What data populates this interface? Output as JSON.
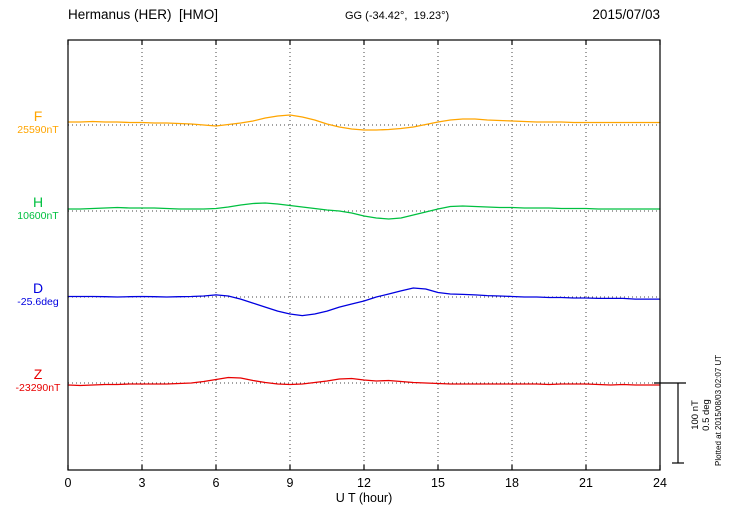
{
  "header": {
    "station": "Hermanus (HER)  [HMO]",
    "coords": "GG (-34.42°,  19.23°)",
    "date": "2015/07/03"
  },
  "axes": {
    "x_label": "U T (hour)",
    "x_ticks": [
      0,
      3,
      6,
      9,
      12,
      15,
      18,
      21,
      24
    ]
  },
  "scale_bar": {
    "nt": "100 nT",
    "deg": "0.5 deg"
  },
  "footer": {
    "plotted_at": "Plotted at 2015/08/03 02:07 UT"
  },
  "colors": {
    "axis": "#000000",
    "grid": "#444444"
  },
  "chart_data": {
    "type": "line",
    "title": "Hermanus (HER) [HMO] magnetogram — 2015/07/03",
    "xlabel": "U T (hour)",
    "x_range": [
      0,
      24
    ],
    "x_tick_step": 3,
    "sample_step_hours": 0.5,
    "grid": "dotted",
    "scale_reference": {
      "nT_per_bar": 100,
      "deg_per_bar": 0.5
    },
    "series": [
      {
        "name": "F",
        "unit": "nT",
        "baseline_value": 25590,
        "baseline_label": "25590nT",
        "color": "#FFA500",
        "offsets_from_baseline": [
          3.8,
          3.8,
          4.4,
          3.8,
          3.8,
          3.1,
          3.1,
          2.5,
          2.5,
          1.9,
          1.2,
          0,
          -1.2,
          0.6,
          2.5,
          5.0,
          8.8,
          11.2,
          12.5,
          10.0,
          6.2,
          1.2,
          -2.5,
          -5.0,
          -6.2,
          -6.2,
          -5.6,
          -4.4,
          -2.5,
          0.6,
          3.8,
          6.2,
          7.5,
          7.5,
          6.2,
          5.6,
          5.0,
          4.4,
          3.8,
          3.8,
          3.8,
          3.1,
          3.1,
          3.1,
          3.1,
          3.1,
          3.1,
          3.1,
          3.1
        ]
      },
      {
        "name": "H",
        "unit": "nT",
        "baseline_value": 10600,
        "baseline_label": "10600nT",
        "color": "#00C040",
        "offsets_from_baseline": [
          2.5,
          2.5,
          3.1,
          3.8,
          4.4,
          3.8,
          3.8,
          3.8,
          3.1,
          2.5,
          2.5,
          2.5,
          3.1,
          5.0,
          7.5,
          9.4,
          10.0,
          8.8,
          6.9,
          5.0,
          3.1,
          1.2,
          0,
          -2.5,
          -6.2,
          -8.8,
          -10.0,
          -8.8,
          -5.0,
          -1.2,
          2.5,
          5.6,
          6.2,
          5.6,
          5.0,
          4.4,
          4.4,
          3.8,
          3.8,
          3.8,
          3.1,
          3.1,
          3.1,
          2.5,
          2.5,
          2.5,
          2.5,
          2.5,
          2.5
        ]
      },
      {
        "name": "D",
        "unit": "deg",
        "baseline_value": -25.6,
        "baseline_label": "-25.6deg",
        "color": "#0000E0",
        "offsets_from_baseline": [
          0.003,
          0.003,
          0.003,
          0.002,
          0,
          0.002,
          0.003,
          0.002,
          0,
          0.002,
          0.003,
          0.006,
          0.013,
          0.006,
          -0.013,
          -0.038,
          -0.063,
          -0.088,
          -0.106,
          -0.116,
          -0.106,
          -0.088,
          -0.063,
          -0.044,
          -0.025,
          0,
          0.019,
          0.038,
          0.056,
          0.05,
          0.028,
          0.019,
          0.016,
          0.013,
          0.009,
          0.006,
          0.003,
          0,
          0,
          -0.003,
          -0.003,
          -0.006,
          -0.006,
          -0.009,
          -0.009,
          -0.009,
          -0.013,
          -0.013,
          -0.013
        ]
      },
      {
        "name": "Z",
        "unit": "nT",
        "baseline_value": -23290,
        "baseline_label": "-23290nT",
        "color": "#E80000",
        "offsets_from_baseline": [
          -2.5,
          -3.1,
          -2.5,
          -1.9,
          -1.9,
          -1.2,
          -1.2,
          -1.2,
          -1.2,
          -0.6,
          0,
          1.9,
          4.4,
          6.9,
          6.2,
          3.1,
          0.6,
          -1.2,
          -1.9,
          -1.2,
          0.6,
          2.5,
          5.0,
          5.6,
          3.8,
          2.5,
          3.1,
          1.9,
          0.6,
          0,
          -0.6,
          -1.2,
          -1.2,
          -1.2,
          -1.2,
          -1.2,
          -1.2,
          -1.2,
          -1.2,
          -1.9,
          -1.2,
          -1.2,
          -1.2,
          -1.9,
          -2.5,
          -1.9,
          -2.5,
          -2.5,
          -2.5
        ]
      }
    ]
  }
}
